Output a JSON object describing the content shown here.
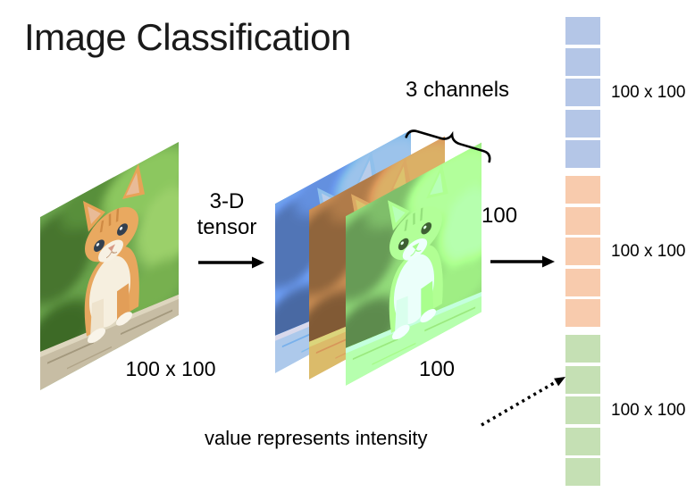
{
  "slide": {
    "title": "Image Classification",
    "tensor_arrow_label": "3-D\ntensor",
    "channels_label": "3 channels",
    "intensity_note": "value represents intensity",
    "input_image": {
      "caption": "100 x 100",
      "subject": "orange kitten sitting on a wooden log with green grass background"
    },
    "tensor": {
      "height_label": "100",
      "width_label": "100",
      "channels": [
        {
          "name": "blue"
        },
        {
          "name": "orange"
        },
        {
          "name": "green"
        }
      ]
    },
    "vector": {
      "groups": [
        {
          "channel": "blue",
          "color": "#b4c6e7",
          "cells": 5,
          "label": "100 x 100"
        },
        {
          "channel": "orange",
          "color": "#f8cbad",
          "cells": 5,
          "label": "100 x 100"
        },
        {
          "channel": "green",
          "color": "#c5e0b4",
          "cells": 5,
          "label": "100 x 100"
        }
      ]
    }
  }
}
